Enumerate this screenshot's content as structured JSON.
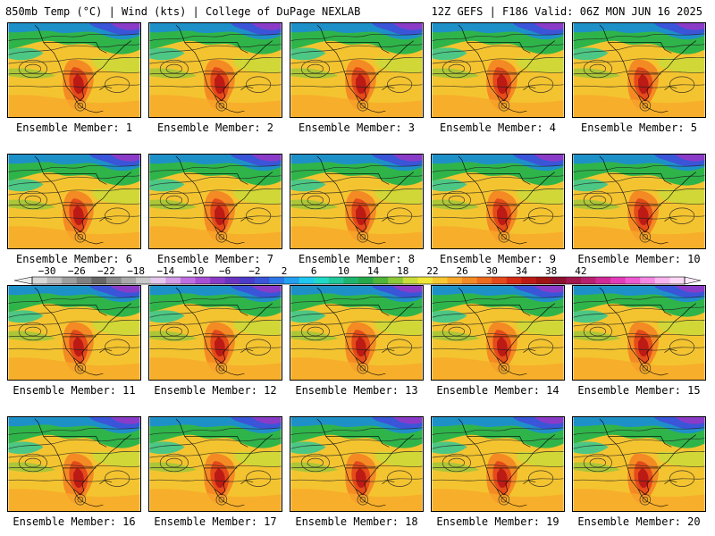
{
  "header": {
    "left_title": "850mb Temp (°C) | Wind (kts) | College of DuPage NEXLAB",
    "right_title": "12Z GEFS | F186 Valid: 06Z MON JUN 16 2025"
  },
  "panels": [
    {
      "label": "Ensemble Member: 1"
    },
    {
      "label": "Ensemble Member: 2"
    },
    {
      "label": "Ensemble Member: 3"
    },
    {
      "label": "Ensemble Member: 4"
    },
    {
      "label": "Ensemble Member: 5"
    },
    {
      "label": "Ensemble Member: 6"
    },
    {
      "label": "Ensemble Member: 7"
    },
    {
      "label": "Ensemble Member: 8"
    },
    {
      "label": "Ensemble Member: 9"
    },
    {
      "label": "Ensemble Member: 10"
    },
    {
      "label": "Ensemble Member: 11"
    },
    {
      "label": "Ensemble Member: 12"
    },
    {
      "label": "Ensemble Member: 13"
    },
    {
      "label": "Ensemble Member: 14"
    },
    {
      "label": "Ensemble Member: 15"
    },
    {
      "label": "Ensemble Member: 16"
    },
    {
      "label": "Ensemble Member: 17"
    },
    {
      "label": "Ensemble Member: 18"
    },
    {
      "label": "Ensemble Member: 19"
    },
    {
      "label": "Ensemble Member: 20"
    }
  ],
  "colorbar": {
    "ticks": [
      "−30",
      "−26",
      "−22",
      "−18",
      "−14",
      "−10",
      "−6",
      "−2",
      "2",
      "6",
      "10",
      "14",
      "18",
      "22",
      "26",
      "30",
      "34",
      "38",
      "42"
    ],
    "colors": [
      "#d8d8d8",
      "#bdbdbd",
      "#9e9e9e",
      "#808080",
      "#666666",
      "#8a8a8a",
      "#a9a9a9",
      "#c8c8c8",
      "#e6c8ef",
      "#d49ee8",
      "#c06fe0",
      "#a94fd6",
      "#8a3cc8",
      "#6a34c0",
      "#4b3bc8",
      "#3a55d8",
      "#2e78e6",
      "#24a0f0",
      "#1ec8f0",
      "#20d9c8",
      "#22c89a",
      "#1fb56e",
      "#26a84a",
      "#4fb43a",
      "#8cc83a",
      "#c8dc3a",
      "#f0e63a",
      "#f8c832",
      "#f8a82a",
      "#f48a24",
      "#ee6a1e",
      "#e44a1a",
      "#d42a16",
      "#bc1a14",
      "#a01414",
      "#8c1030",
      "#a0184c",
      "#b82070",
      "#d02a96",
      "#e23cba",
      "#ee5ad2",
      "#f488e2",
      "#f8b4ee",
      "#fcd8f6"
    ]
  }
}
